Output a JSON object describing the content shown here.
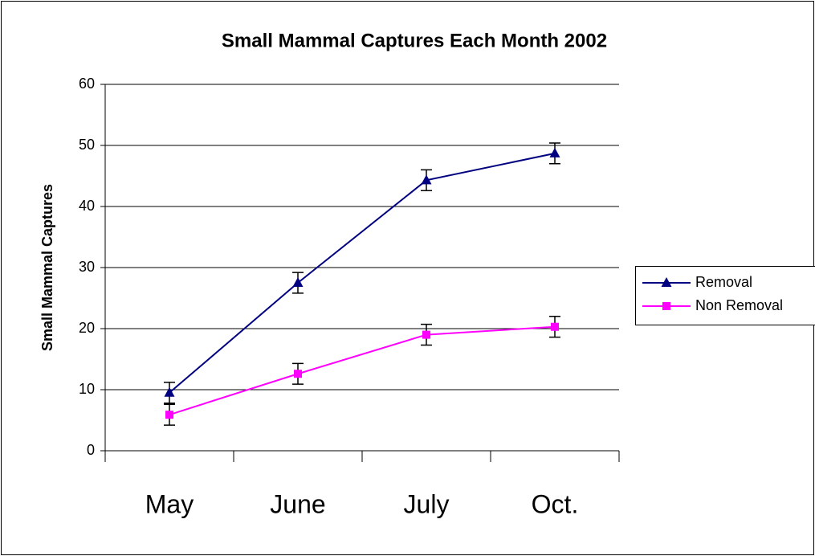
{
  "chart_data": {
    "type": "line",
    "title": "Small Mammal Captures Each Month 2002",
    "ylabel": "Small Mammal Captures",
    "categories": [
      "May",
      "June",
      "July",
      "Oct."
    ],
    "series": [
      {
        "name": "Removal",
        "color": "#000080",
        "marker": "triangle",
        "values": [
          9.5,
          27.5,
          44.3,
          48.7
        ],
        "errors": [
          1.7,
          1.7,
          1.7,
          1.7
        ]
      },
      {
        "name": "Non Removal",
        "color": "#ff00ff",
        "marker": "square",
        "values": [
          5.9,
          12.6,
          19,
          20.3
        ],
        "errors": [
          1.7,
          1.7,
          1.7,
          1.7
        ]
      }
    ],
    "ylim": [
      0,
      60
    ],
    "yticks": [
      0,
      10,
      20,
      30,
      40,
      50,
      60
    ],
    "grid": true,
    "legend": "right"
  }
}
